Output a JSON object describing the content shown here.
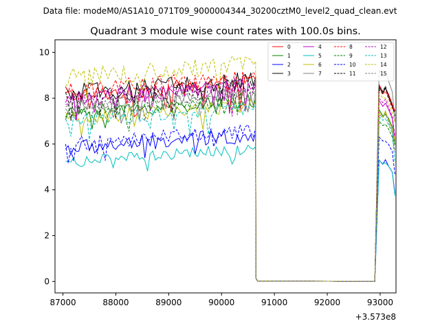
{
  "header_text": "Data file: modeM0/AS1A10_071T09_9000004344_30200cztM0_level2_quad_clean.evt",
  "chart_data": {
    "type": "line",
    "title": "Quadrant 3 module wise count rates with 100.0s bins.",
    "xlabel": "",
    "ylabel": "",
    "x_offset_label": "+3.573e8",
    "xlim": [
      86850,
      93300
    ],
    "ylim": [
      -0.5,
      10.55
    ],
    "xticks": [
      87000,
      88000,
      89000,
      90000,
      91000,
      92000,
      93000
    ],
    "xtick_labels": [
      "87000",
      "88000",
      "89000",
      "90000",
      "91000",
      "92000",
      "93000"
    ],
    "yticks": [
      0,
      2,
      4,
      6,
      8,
      10
    ],
    "ytick_labels": [
      "0",
      "2",
      "4",
      "6",
      "8",
      "10"
    ],
    "legend_position": "top-right",
    "x_start": 87050,
    "x_step": 50,
    "gap_start_x": 90650,
    "gap_end_x": 92900,
    "series": [
      {
        "name": "0",
        "color": "#ff0000",
        "dash": "solid",
        "level": 8.1,
        "amp": 0.35,
        "end": 8.6
      },
      {
        "name": "1",
        "color": "#008000",
        "dash": "solid",
        "level": 7.3,
        "amp": 0.3,
        "end": 7.5
      },
      {
        "name": "2",
        "color": "#0000ff",
        "dash": "solid",
        "level": 5.8,
        "amp": 0.35,
        "end": 5.3
      },
      {
        "name": "3",
        "color": "#000000",
        "dash": "solid",
        "level": 8.2,
        "amp": 0.4,
        "end": 8.5
      },
      {
        "name": "4",
        "color": "#bf00bf",
        "dash": "solid",
        "level": 8.0,
        "amp": 0.35,
        "end": 7.9
      },
      {
        "name": "5",
        "color": "#00bfbf",
        "dash": "solid",
        "level": 5.2,
        "amp": 0.25,
        "end": 5.3
      },
      {
        "name": "6",
        "color": "#bfbf00",
        "dash": "solid",
        "level": 7.1,
        "amp": 0.3,
        "end": 7.4
      },
      {
        "name": "7",
        "color": "#808080",
        "dash": "solid",
        "level": 7.7,
        "amp": 0.3,
        "end": 9.2
      },
      {
        "name": "8",
        "color": "#ff0000",
        "dash": "dashed",
        "level": 8.3,
        "amp": 0.4,
        "end": 8.4
      },
      {
        "name": "9",
        "color": "#008000",
        "dash": "dashed",
        "level": 7.4,
        "amp": 0.3,
        "end": 7.0
      },
      {
        "name": "10",
        "color": "#0000ff",
        "dash": "dashed",
        "level": 6.0,
        "amp": 0.3,
        "end": 6.3
      },
      {
        "name": "11",
        "color": "#000000",
        "dash": "dashed",
        "level": 8.0,
        "amp": 0.35,
        "end": 8.5
      },
      {
        "name": "12",
        "color": "#bf00bf",
        "dash": "dashed",
        "level": 7.9,
        "amp": 0.35,
        "end": 8.0
      },
      {
        "name": "13",
        "color": "#00bfbf",
        "dash": "dashed",
        "level": 7.0,
        "amp": 0.3,
        "end": 7.2
      },
      {
        "name": "14",
        "color": "#bfbf00",
        "dash": "dashed",
        "level": 8.9,
        "amp": 0.4,
        "end": 8.2
      },
      {
        "name": "15",
        "color": "#808080",
        "dash": "dashed",
        "level": 7.6,
        "amp": 0.3,
        "end": 7.3
      }
    ]
  }
}
